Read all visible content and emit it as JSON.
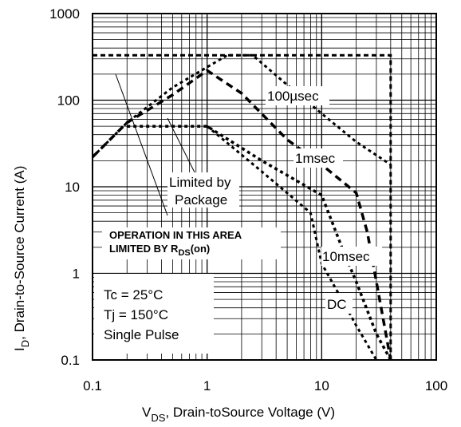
{
  "chart_data": {
    "type": "line",
    "x_scale": "log",
    "y_scale": "log",
    "xlim": [
      0.1,
      100
    ],
    "ylim": [
      0.1,
      1000
    ],
    "grid": true,
    "x_ticks": [
      "0.1",
      "1",
      "10",
      "100"
    ],
    "y_ticks": [
      "0.1",
      "1",
      "10",
      "100",
      "1000"
    ],
    "xlabel": {
      "main": "V",
      "sub": "DS",
      "rest": ",  Drain-toSource Voltage (V)"
    },
    "ylabel": {
      "main": "I",
      "sub": "D",
      "rest": ",  Drain-to-Source Current (A)"
    },
    "conditions": [
      "Tc = 25°C",
      "Tj = 150°C",
      "Single Pulse"
    ],
    "annotations": {
      "package_line1": "Limited by",
      "package_line2": "Package",
      "rds_line1": "OPERATION IN THIS AREA",
      "rds_line2_a": "LIMITED BY R",
      "rds_line2_sub": "DS",
      "rds_line2_b": "(on)"
    },
    "series": [
      {
        "name": "100µsec",
        "points": [
          [
            0.1,
            22
          ],
          [
            0.2,
            55
          ],
          [
            0.5,
            140
          ],
          [
            1.5,
            330
          ],
          [
            2.5,
            330
          ],
          [
            5,
            150
          ],
          [
            10,
            70
          ],
          [
            20,
            33
          ],
          [
            40,
            18
          ]
        ]
      },
      {
        "name": "1msec",
        "points": [
          [
            0.1,
            22
          ],
          [
            0.2,
            55
          ],
          [
            0.5,
            115
          ],
          [
            1,
            220
          ],
          [
            2,
            120
          ],
          [
            5,
            35
          ],
          [
            10,
            18
          ],
          [
            20,
            8.5
          ],
          [
            25,
            3
          ],
          [
            30,
            0.8
          ],
          [
            40,
            0.1
          ]
        ]
      },
      {
        "name": "10msec",
        "points": [
          [
            0.2,
            50
          ],
          [
            1,
            50
          ],
          [
            3,
            20
          ],
          [
            10,
            8
          ],
          [
            15,
            2
          ],
          [
            20,
            0.8
          ],
          [
            30,
            0.2
          ],
          [
            40,
            0.1
          ]
        ]
      },
      {
        "name": "DC",
        "points": [
          [
            1,
            50
          ],
          [
            3,
            15
          ],
          [
            8,
            5
          ],
          [
            10,
            1.3
          ],
          [
            15,
            0.5
          ],
          [
            20,
            0.25
          ],
          [
            30,
            0.1
          ]
        ]
      },
      {
        "name": "",
        "points": [
          [
            0.1,
            330
          ],
          [
            40,
            330
          ],
          [
            40,
            0.1
          ]
        ]
      }
    ]
  }
}
